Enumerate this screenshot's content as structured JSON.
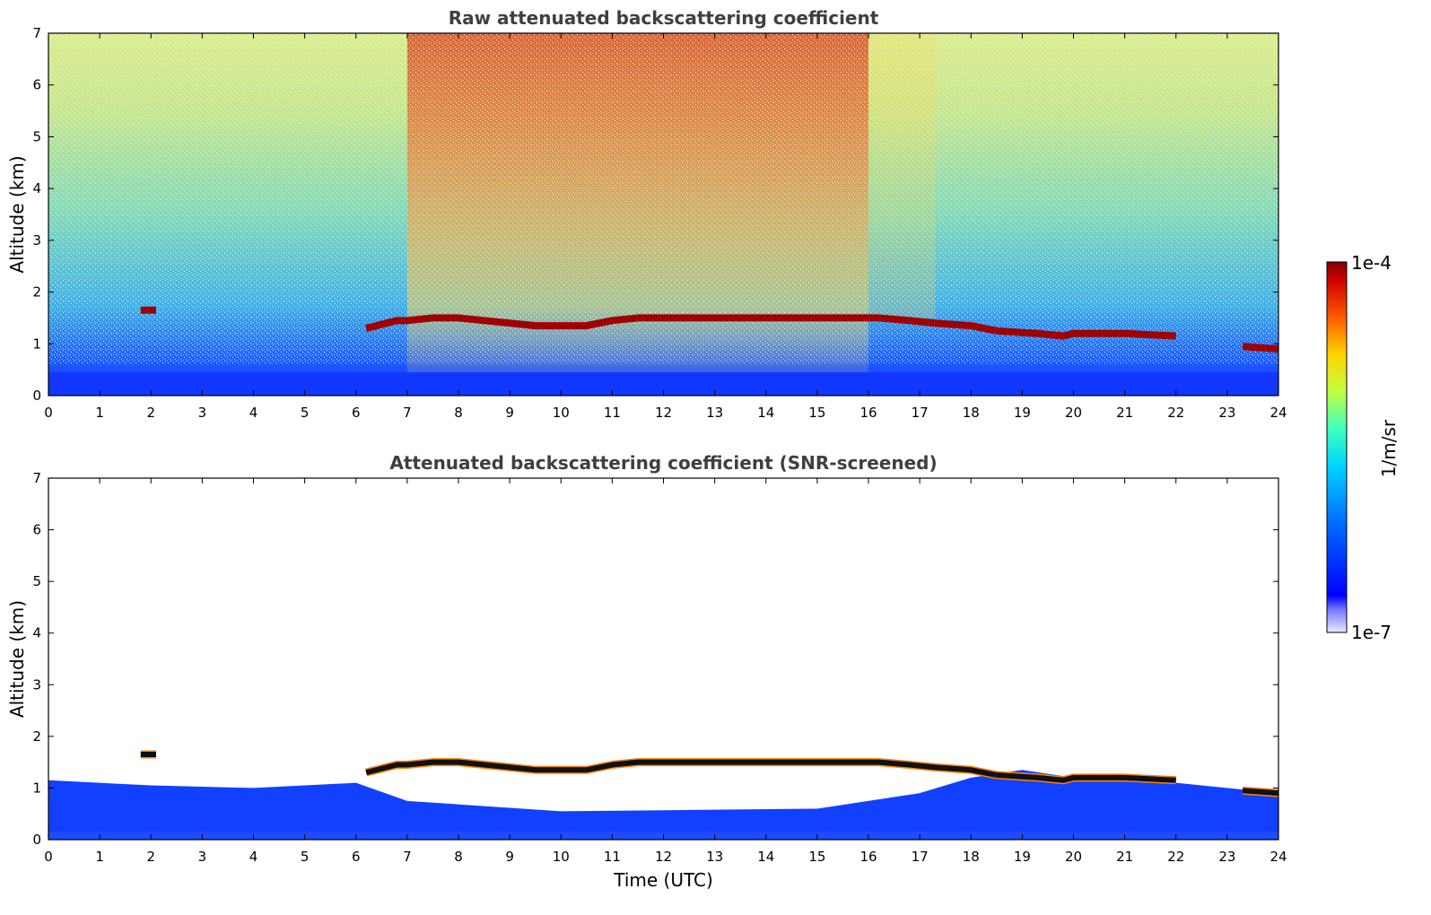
{
  "chart_data": [
    {
      "type": "heatmap",
      "title": "Raw attenuated backscattering coefficient",
      "xlabel": "",
      "ylabel": "Altitude (km)",
      "xlim": [
        0,
        24
      ],
      "ylim": [
        0,
        7
      ],
      "xticks": [
        "0",
        "1",
        "2",
        "3",
        "4",
        "5",
        "6",
        "7",
        "8",
        "9",
        "10",
        "11",
        "12",
        "13",
        "14",
        "15",
        "16",
        "17",
        "18",
        "19",
        "20",
        "21",
        "22",
        "23",
        "24"
      ],
      "yticks": [
        "0",
        "1",
        "2",
        "3",
        "4",
        "5",
        "6",
        "7"
      ],
      "cloud_layer_km": [
        {
          "t": 1.8,
          "alt": 1.65
        },
        {
          "t": 2.1,
          "alt": 1.65
        },
        {
          "t": 6.2,
          "alt": 1.3
        },
        {
          "t": 6.8,
          "alt": 1.45
        },
        {
          "t": 7.0,
          "alt": 1.45
        },
        {
          "t": 7.5,
          "alt": 1.5
        },
        {
          "t": 8.0,
          "alt": 1.5
        },
        {
          "t": 8.5,
          "alt": 1.45
        },
        {
          "t": 9.0,
          "alt": 1.4
        },
        {
          "t": 9.5,
          "alt": 1.35
        },
        {
          "t": 10.0,
          "alt": 1.35
        },
        {
          "t": 10.5,
          "alt": 1.35
        },
        {
          "t": 11.0,
          "alt": 1.45
        },
        {
          "t": 11.5,
          "alt": 1.5
        },
        {
          "t": 12.0,
          "alt": 1.5
        },
        {
          "t": 13.0,
          "alt": 1.5
        },
        {
          "t": 14.0,
          "alt": 1.5
        },
        {
          "t": 15.0,
          "alt": 1.5
        },
        {
          "t": 15.7,
          "alt": 1.5
        },
        {
          "t": 16.2,
          "alt": 1.5
        },
        {
          "t": 16.8,
          "alt": 1.45
        },
        {
          "t": 17.3,
          "alt": 1.4
        },
        {
          "t": 18.0,
          "alt": 1.35
        },
        {
          "t": 18.5,
          "alt": 1.25
        },
        {
          "t": 19.3,
          "alt": 1.2
        },
        {
          "t": 19.8,
          "alt": 1.15
        },
        {
          "t": 20.0,
          "alt": 1.2
        },
        {
          "t": 21.0,
          "alt": 1.2
        },
        {
          "t": 22.0,
          "alt": 1.15
        },
        {
          "t": 23.3,
          "alt": 0.95
        },
        {
          "t": 24.0,
          "alt": 0.9
        }
      ]
    },
    {
      "type": "heatmap",
      "title": "Attenuated backscattering coefficient (SNR-screened)",
      "xlabel": "Time (UTC)",
      "ylabel": "Altitude (km)",
      "xlim": [
        0,
        24
      ],
      "ylim": [
        0,
        7
      ],
      "xticks": [
        "0",
        "1",
        "2",
        "3",
        "4",
        "5",
        "6",
        "7",
        "8",
        "9",
        "10",
        "11",
        "12",
        "13",
        "14",
        "15",
        "16",
        "17",
        "18",
        "19",
        "20",
        "21",
        "22",
        "23",
        "24"
      ],
      "yticks": [
        "0",
        "1",
        "2",
        "3",
        "4",
        "5",
        "6",
        "7"
      ],
      "boundary_layer_top_km": [
        {
          "t": 0,
          "alt": 1.15
        },
        {
          "t": 2,
          "alt": 1.05
        },
        {
          "t": 4,
          "alt": 1.0
        },
        {
          "t": 6,
          "alt": 1.1
        },
        {
          "t": 7,
          "alt": 0.75
        },
        {
          "t": 10,
          "alt": 0.55
        },
        {
          "t": 15,
          "alt": 0.6
        },
        {
          "t": 17,
          "alt": 0.9
        },
        {
          "t": 18,
          "alt": 1.2
        },
        {
          "t": 19,
          "alt": 1.35
        },
        {
          "t": 20,
          "alt": 1.2
        },
        {
          "t": 22,
          "alt": 1.1
        },
        {
          "t": 24,
          "alt": 0.9
        }
      ]
    }
  ],
  "colorbar": {
    "label": "1/m/sr",
    "max_label": "1e-4",
    "min_label": "1e-7",
    "scale": "log",
    "colormap": "jet"
  }
}
